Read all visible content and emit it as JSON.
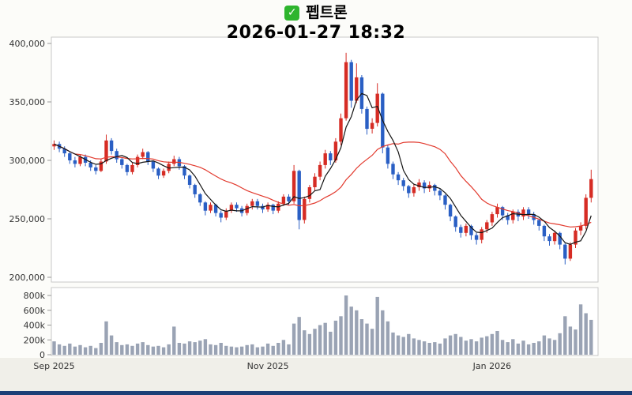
{
  "header": {
    "checkbox_glyph": "✓",
    "title": "펩트론",
    "timestamp": "2026-01-27 18:32"
  },
  "colors": {
    "checkbox": "#2eb52e",
    "up": "#d62c24",
    "down": "#2a5fc4",
    "ma_fast": "#151515",
    "ma_slow": "#e23a2e",
    "volume_bar": "#9aa3b4",
    "axis_text": "#333333",
    "tick": "#999999",
    "border": "#c8c8c8",
    "plot_bg": "#ffffff",
    "footer_bg": "#f0efe9",
    "bottom_bar": "#1c3f77"
  },
  "chart_data": {
    "type": "candlestick",
    "title": "펩트론",
    "timestamp": "2026-01-27 18:32",
    "convention": "red = up, blue = down (Korean chart convention)",
    "price_axis": {
      "min": 200000,
      "max": 400000,
      "ticks": [
        {
          "label": "400,000",
          "value": 400000
        },
        {
          "label": "350,000",
          "value": 350000
        },
        {
          "label": "300,000",
          "value": 300000
        },
        {
          "label": "250,000",
          "value": 250000
        },
        {
          "label": "200,000",
          "value": 200000
        }
      ]
    },
    "volume_axis": {
      "max": 800000,
      "ticks": [
        {
          "label": "800k",
          "value": 800000
        },
        {
          "label": "600k",
          "value": 600000
        },
        {
          "label": "400k",
          "value": 400000
        },
        {
          "label": "200k",
          "value": 200000
        },
        {
          "label": "0",
          "value": 0
        }
      ]
    },
    "x_ticks": [
      {
        "label": "Sep 2025",
        "index": 0
      },
      {
        "label": "Nov 2025",
        "index": 41
      },
      {
        "label": "Jan 2026",
        "index": 84
      }
    ],
    "moving_averages": [
      {
        "name": "MA5",
        "period": 5,
        "color": "#151515"
      },
      {
        "name": "MA20",
        "period": 20,
        "color": "#e23a2e"
      }
    ],
    "candles": [
      [
        312000,
        317000,
        309000,
        314000,
        180000
      ],
      [
        314000,
        316000,
        307000,
        310000,
        140000
      ],
      [
        310000,
        312000,
        303000,
        306000,
        120000
      ],
      [
        306000,
        307000,
        297000,
        300000,
        150000
      ],
      [
        300000,
        303000,
        294000,
        297000,
        110000
      ],
      [
        297000,
        305000,
        295000,
        303000,
        130000
      ],
      [
        303000,
        305000,
        295000,
        298000,
        100000
      ],
      [
        298000,
        300000,
        291000,
        294000,
        120000
      ],
      [
        294000,
        296000,
        288000,
        291000,
        90000
      ],
      [
        291000,
        301000,
        290000,
        299000,
        160000
      ],
      [
        299000,
        322000,
        297000,
        317000,
        450000
      ],
      [
        317000,
        319000,
        305000,
        308000,
        260000
      ],
      [
        308000,
        310000,
        298000,
        301000,
        170000
      ],
      [
        301000,
        303000,
        293000,
        296000,
        130000
      ],
      [
        296000,
        297000,
        287000,
        290000,
        140000
      ],
      [
        290000,
        298000,
        288000,
        296000,
        120000
      ],
      [
        296000,
        305000,
        294000,
        303000,
        150000
      ],
      [
        303000,
        310000,
        301000,
        307000,
        170000
      ],
      [
        307000,
        308000,
        296000,
        299000,
        130000
      ],
      [
        299000,
        300000,
        290000,
        293000,
        110000
      ],
      [
        293000,
        294000,
        284000,
        287000,
        120000
      ],
      [
        287000,
        293000,
        285000,
        291000,
        100000
      ],
      [
        291000,
        299000,
        289000,
        297000,
        140000
      ],
      [
        297000,
        304000,
        295000,
        301000,
        380000
      ],
      [
        301000,
        303000,
        292000,
        295000,
        160000
      ],
      [
        295000,
        296000,
        284000,
        287000,
        150000
      ],
      [
        287000,
        288000,
        276000,
        279000,
        180000
      ],
      [
        279000,
        280000,
        268000,
        271000,
        170000
      ],
      [
        271000,
        272000,
        261000,
        264000,
        190000
      ],
      [
        264000,
        265000,
        253000,
        257000,
        210000
      ],
      [
        257000,
        264000,
        255000,
        262000,
        140000
      ],
      [
        262000,
        263000,
        252000,
        255000,
        130000
      ],
      [
        255000,
        257000,
        247000,
        251000,
        160000
      ],
      [
        251000,
        259000,
        249000,
        257000,
        120000
      ],
      [
        257000,
        264000,
        255000,
        262000,
        110000
      ],
      [
        262000,
        264000,
        256000,
        259000,
        100000
      ],
      [
        259000,
        261000,
        252000,
        255000,
        110000
      ],
      [
        255000,
        263000,
        253000,
        261000,
        130000
      ],
      [
        261000,
        267000,
        258000,
        265000,
        140000
      ],
      [
        265000,
        267000,
        258000,
        261000,
        100000
      ],
      [
        261000,
        263000,
        255000,
        258000,
        110000
      ],
      [
        258000,
        264000,
        256000,
        262000,
        150000
      ],
      [
        262000,
        263000,
        254000,
        257000,
        120000
      ],
      [
        257000,
        265000,
        255000,
        263000,
        160000
      ],
      [
        263000,
        271000,
        261000,
        269000,
        200000
      ],
      [
        269000,
        271000,
        262000,
        265000,
        140000
      ],
      [
        265000,
        296000,
        263000,
        291000,
        420000
      ],
      [
        291000,
        292000,
        241000,
        249000,
        510000
      ],
      [
        249000,
        269000,
        246000,
        267000,
        330000
      ],
      [
        267000,
        279000,
        264000,
        277000,
        280000
      ],
      [
        277000,
        289000,
        274000,
        286000,
        350000
      ],
      [
        286000,
        299000,
        283000,
        296000,
        400000
      ],
      [
        296000,
        309000,
        293000,
        306000,
        430000
      ],
      [
        306000,
        308000,
        296000,
        300000,
        310000
      ],
      [
        300000,
        319000,
        298000,
        316000,
        460000
      ],
      [
        316000,
        340000,
        313000,
        336000,
        520000
      ],
      [
        336000,
        392000,
        334000,
        384000,
        800000
      ],
      [
        384000,
        386000,
        345000,
        351000,
        650000
      ],
      [
        351000,
        383000,
        349000,
        371000,
        600000
      ],
      [
        371000,
        373000,
        340000,
        344000,
        480000
      ],
      [
        344000,
        346000,
        322000,
        327000,
        420000
      ],
      [
        327000,
        336000,
        323000,
        332000,
        350000
      ],
      [
        332000,
        366000,
        329000,
        357000,
        780000
      ],
      [
        357000,
        358000,
        306000,
        311000,
        600000
      ],
      [
        311000,
        313000,
        293000,
        297000,
        450000
      ],
      [
        297000,
        299000,
        284000,
        288000,
        300000
      ],
      [
        288000,
        290000,
        279000,
        283000,
        260000
      ],
      [
        283000,
        285000,
        274000,
        278000,
        240000
      ],
      [
        278000,
        279000,
        268000,
        272000,
        280000
      ],
      [
        272000,
        280000,
        269000,
        277000,
        220000
      ],
      [
        277000,
        284000,
        274000,
        281000,
        200000
      ],
      [
        281000,
        283000,
        272000,
        276000,
        180000
      ],
      [
        276000,
        282000,
        273000,
        279000,
        160000
      ],
      [
        279000,
        280000,
        270000,
        274000,
        170000
      ],
      [
        274000,
        276000,
        266000,
        270000,
        150000
      ],
      [
        270000,
        271000,
        258000,
        262000,
        220000
      ],
      [
        262000,
        263000,
        248000,
        252000,
        260000
      ],
      [
        252000,
        253000,
        239000,
        243000,
        280000
      ],
      [
        243000,
        245000,
        234000,
        238000,
        240000
      ],
      [
        238000,
        246000,
        235000,
        244000,
        190000
      ],
      [
        244000,
        245000,
        232000,
        236000,
        210000
      ],
      [
        236000,
        238000,
        228000,
        232000,
        180000
      ],
      [
        232000,
        243000,
        229000,
        241000,
        230000
      ],
      [
        241000,
        249000,
        238000,
        247000,
        250000
      ],
      [
        247000,
        256000,
        244000,
        254000,
        280000
      ],
      [
        254000,
        263000,
        251000,
        260000,
        320000
      ],
      [
        260000,
        261000,
        249000,
        253000,
        200000
      ],
      [
        253000,
        255000,
        245000,
        249000,
        170000
      ],
      [
        249000,
        258000,
        246000,
        256000,
        210000
      ],
      [
        256000,
        258000,
        248000,
        252000,
        150000
      ],
      [
        252000,
        260000,
        249000,
        258000,
        190000
      ],
      [
        258000,
        260000,
        250000,
        254000,
        140000
      ],
      [
        254000,
        256000,
        245000,
        249000,
        160000
      ],
      [
        249000,
        250000,
        240000,
        244000,
        180000
      ],
      [
        244000,
        245000,
        231000,
        235000,
        260000
      ],
      [
        235000,
        237000,
        227000,
        231000,
        220000
      ],
      [
        231000,
        240000,
        228000,
        238000,
        200000
      ],
      [
        238000,
        239000,
        224000,
        228000,
        290000
      ],
      [
        228000,
        229000,
        211000,
        216000,
        520000
      ],
      [
        216000,
        230000,
        214000,
        228000,
        380000
      ],
      [
        228000,
        242000,
        225000,
        240000,
        340000
      ],
      [
        240000,
        247000,
        236000,
        244000,
        680000
      ],
      [
        244000,
        271000,
        241000,
        268000,
        560000
      ],
      [
        268000,
        292000,
        264000,
        284000,
        470000
      ]
    ]
  }
}
